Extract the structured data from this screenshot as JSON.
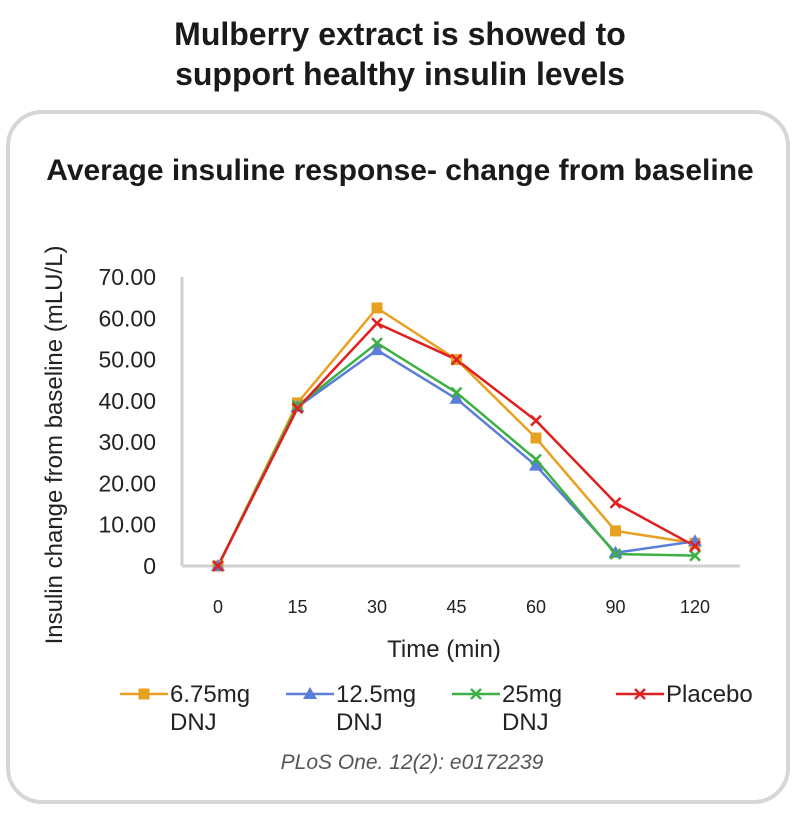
{
  "headline": {
    "line1": "Mulberry extract is showed to",
    "line2": "support healthy insulin levels"
  },
  "source": "PLoS One. 12(2): e0172239",
  "chart_data": {
    "type": "line",
    "title": "Average insuline response- change from baseline",
    "xlabel": "Time (min)",
    "ylabel": "Insulin change from baseline (mLU/L)",
    "categories": [
      "0",
      "15",
      "30",
      "45",
      "60",
      "90",
      "120"
    ],
    "y_ticks": [
      "0",
      "10.00",
      "20.00",
      "30.00",
      "40.00",
      "50.00",
      "60.00",
      "70.00"
    ],
    "ylim": [
      0,
      70
    ],
    "grid": false,
    "legend_position": "bottom",
    "series": [
      {
        "name": "6.75mg DNJ",
        "name_lines": [
          "6.75mg",
          "DNJ"
        ],
        "color": "#E8A020",
        "marker": "square",
        "values": [
          0,
          39.5,
          62.5,
          50,
          31,
          8.5,
          5.5
        ]
      },
      {
        "name": "12.5mg DNJ",
        "name_lines": [
          "12.5mg",
          "DNJ"
        ],
        "color": "#5B7FD9",
        "marker": "triangle",
        "values": [
          0,
          38.5,
          52.3,
          40.5,
          24.3,
          3.2,
          6
        ]
      },
      {
        "name": "25mg DNJ",
        "name_lines": [
          "25mg",
          "DNJ"
        ],
        "color": "#3CB043",
        "marker": "x",
        "values": [
          0,
          38.8,
          54,
          42,
          25.8,
          2.9,
          2.5
        ]
      },
      {
        "name": "Placebo",
        "name_lines": [
          "Placebo"
        ],
        "color": "#E02020",
        "marker": "x",
        "values": [
          0,
          38.2,
          58.8,
          50,
          35.2,
          15.3,
          4.8
        ]
      }
    ]
  }
}
